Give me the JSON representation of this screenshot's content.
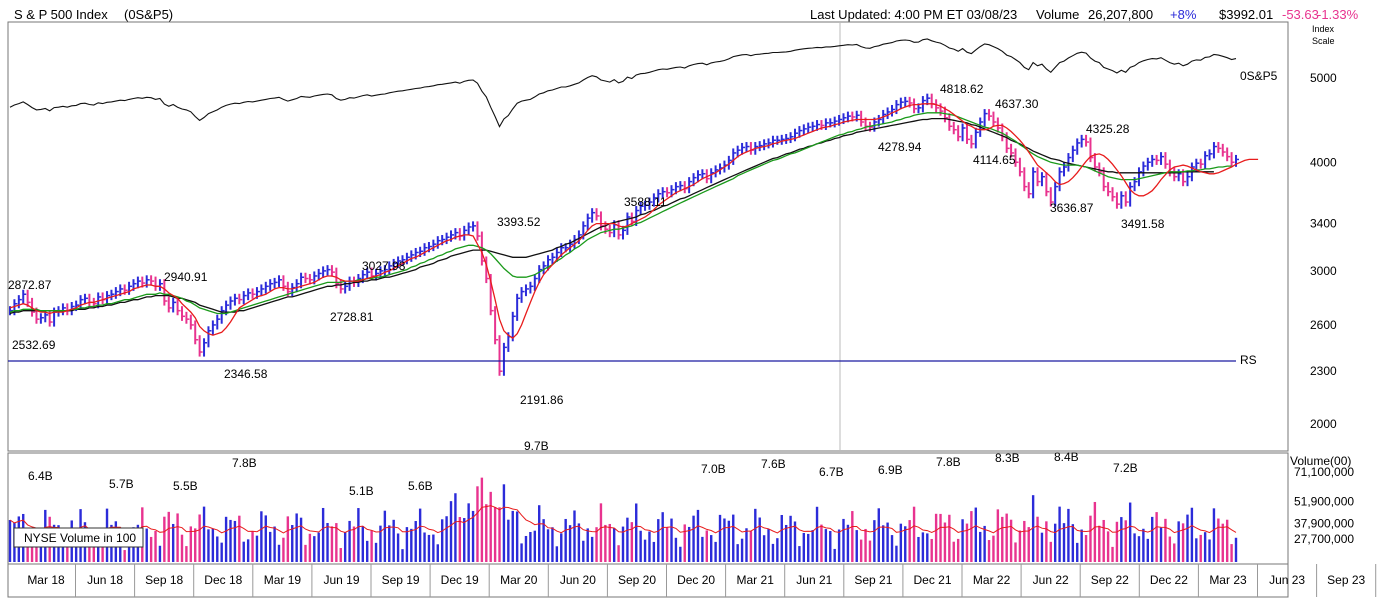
{
  "header": {
    "title": "S & P 500 Index",
    "symbol": "(0S&P5)",
    "last_updated": "Last Updated: 4:00 PM ET 03/08/23",
    "volume_label": "Volume",
    "volume_value": "26,207,800",
    "volume_change": "+8%",
    "price": "$3992.01",
    "change": "-53.63",
    "change_pct": "-1.33%"
  },
  "colors": {
    "up_bar": "#2b2bd9",
    "down_bar": "#e8338f",
    "ma_red": "#e81c1c",
    "ma_green": "#1a9a1a",
    "ma_black": "#111111",
    "rs_line": "#1a1aa0",
    "positive": "#2b2bd9",
    "negative": "#e8338f"
  },
  "chart_data": [
    {
      "type": "line",
      "panel": "price",
      "scale": "log",
      "ylim": [
        1800,
        6000
      ],
      "scale_label": [
        "Index",
        "Scale"
      ],
      "y_ticks": [
        2000,
        2300,
        2600,
        3000,
        3400,
        4000,
        5000
      ],
      "x_ticks": [
        "Mar 18",
        "Jun 18",
        "Sep 18",
        "Dec 18",
        "Mar 19",
        "Jun 19",
        "Sep 19",
        "Dec 19",
        "Mar 20",
        "Jun 20",
        "Sep 20",
        "Dec 20",
        "Mar 21",
        "Jun 21",
        "Sep 21",
        "Dec 21",
        "Mar 22",
        "Jun 22",
        "Sep 22",
        "Dec 22",
        "Mar 23",
        "Jun 23",
        "Sep 23"
      ],
      "price_annotations": [
        "2872.87",
        "2532.69",
        "2940.91",
        "2346.58",
        "2728.81",
        "3027.98",
        "3393.52",
        "2191.86",
        "3588.11",
        "4278.94",
        "4818.62",
        "4637.30",
        "4114.65",
        "4325.28",
        "3636.87",
        "3491.58"
      ],
      "weekly_close": [
        2700,
        2750,
        2780,
        2820,
        2760,
        2690,
        2640,
        2650,
        2670,
        2620,
        2690,
        2700,
        2720,
        2700,
        2730,
        2740,
        2780,
        2790,
        2760,
        2750,
        2800,
        2780,
        2810,
        2820,
        2840,
        2860,
        2850,
        2880,
        2900,
        2920,
        2905,
        2930,
        2920,
        2880,
        2900,
        2770,
        2720,
        2760,
        2700,
        2660,
        2640,
        2600,
        2500,
        2420,
        2480,
        2560,
        2600,
        2640,
        2700,
        2740,
        2770,
        2790,
        2780,
        2810,
        2830,
        2820,
        2840,
        2860,
        2880,
        2900,
        2910,
        2930,
        2880,
        2840,
        2870,
        2900,
        2950,
        2940,
        2930,
        2960,
        2980,
        3000,
        3010,
        2990,
        2900,
        2860,
        2880,
        2920,
        2910,
        2940,
        2970,
        2990,
        2960,
        2980,
        3000,
        3010,
        3040,
        3060,
        3080,
        3090,
        3110,
        3130,
        3150,
        3160,
        3190,
        3200,
        3220,
        3250,
        3260,
        3280,
        3300,
        3320,
        3290,
        3340,
        3370,
        3380,
        3290,
        3080,
        2940,
        2700,
        2500,
        2300,
        2450,
        2520,
        2660,
        2790,
        2840,
        2860,
        2880,
        2940,
        3010,
        3040,
        3090,
        3110,
        3150,
        3190,
        3190,
        3220,
        3260,
        3300,
        3380,
        3450,
        3500,
        3470,
        3380,
        3350,
        3320,
        3390,
        3300,
        3340,
        3460,
        3420,
        3520,
        3560,
        3570,
        3600,
        3640,
        3680,
        3700,
        3690,
        3720,
        3750,
        3760,
        3730,
        3800,
        3840,
        3870,
        3880,
        3830,
        3890,
        3920,
        3940,
        3970,
        4020,
        4100,
        4130,
        4160,
        4170,
        4130,
        4170,
        4180,
        4200,
        4210,
        4240,
        4240,
        4250,
        4260,
        4280,
        4320,
        4350,
        4370,
        4390,
        4400,
        4420,
        4410,
        4440,
        4440,
        4460,
        4480,
        4500,
        4520,
        4510,
        4530,
        4450,
        4400,
        4390,
        4450,
        4480,
        4540,
        4570,
        4600,
        4660,
        4690,
        4700,
        4680,
        4610,
        4620,
        4710,
        4740,
        4670,
        4620,
        4580,
        4500,
        4400,
        4360,
        4280,
        4380,
        4250,
        4200,
        4330,
        4450,
        4550,
        4520,
        4450,
        4380,
        4280,
        4150,
        4100,
        4000,
        3900,
        3750,
        3680,
        3900,
        3800,
        3850,
        3700,
        3600,
        3750,
        3900,
        3950,
        4050,
        4130,
        4210,
        4250,
        4220,
        4050,
        3950,
        3900,
        3750,
        3700,
        3650,
        3580,
        3660,
        3600,
        3750,
        3800,
        3900,
        3960,
        4000,
        4030,
        4020,
        4060,
        3980,
        3900,
        3850,
        3880,
        3800,
        3850,
        3950,
        3990,
        3980,
        4070,
        4090,
        4170,
        4150,
        4110,
        4060,
        4000,
        4030
      ],
      "sma10": [
        2720,
        2730,
        2740,
        2750,
        2740,
        2720,
        2700,
        2690,
        2690,
        2680,
        2690,
        2690,
        2690,
        2700,
        2710,
        2720,
        2740,
        2750,
        2760,
        2760,
        2770,
        2780,
        2790,
        2800,
        2810,
        2820,
        2830,
        2840,
        2860,
        2870,
        2880,
        2890,
        2890,
        2880,
        2880,
        2860,
        2830,
        2810,
        2790,
        2750,
        2720,
        2690,
        2650,
        2590,
        2560,
        2540,
        2530,
        2540,
        2550,
        2580,
        2620,
        2670,
        2720,
        2740,
        2760,
        2780,
        2800,
        2810,
        2820,
        2840,
        2860,
        2870,
        2870,
        2860,
        2860,
        2870,
        2880,
        2890,
        2900,
        2910,
        2930,
        2950,
        2960,
        2960,
        2950,
        2930,
        2920,
        2920,
        2920,
        2920,
        2930,
        2940,
        2950,
        2960,
        2970,
        2990,
        3000,
        3020,
        3040,
        3060,
        3080,
        3100,
        3110,
        3130,
        3150,
        3170,
        3190,
        3210,
        3230,
        3250,
        3260,
        3280,
        3290,
        3300,
        3300,
        3290,
        3220,
        3150,
        3050,
        2920,
        2780,
        2640,
        2560,
        2530,
        2510,
        2540,
        2600,
        2680,
        2760,
        2840,
        2910,
        2970,
        3010,
        3050,
        3090,
        3130,
        3160,
        3190,
        3220,
        3250,
        3290,
        3340,
        3380,
        3400,
        3400,
        3400,
        3400,
        3400,
        3380,
        3370,
        3380,
        3400,
        3420,
        3440,
        3460,
        3490,
        3530,
        3570,
        3600,
        3630,
        3660,
        3690,
        3710,
        3730,
        3750,
        3770,
        3800,
        3830,
        3850,
        3870,
        3890,
        3920,
        3950,
        3980,
        4020,
        4060,
        4090,
        4110,
        4130,
        4150,
        4160,
        4170,
        4180,
        4200,
        4210,
        4230,
        4240,
        4250,
        4260,
        4280,
        4300,
        4320,
        4340,
        4360,
        4380,
        4390,
        4400,
        4420,
        4430,
        4450,
        4460,
        4470,
        4480,
        4480,
        4480,
        4480,
        4480,
        4490,
        4510,
        4530,
        4560,
        4580,
        4610,
        4630,
        4650,
        4660,
        4660,
        4670,
        4670,
        4670,
        4660,
        4640,
        4610,
        4580,
        4540,
        4500,
        4460,
        4420,
        4400,
        4370,
        4360,
        4360,
        4370,
        4400,
        4410,
        4410,
        4380,
        4340,
        4290,
        4240,
        4180,
        4110,
        4040,
        3970,
        3930,
        3890,
        3850,
        3800,
        3770,
        3780,
        3800,
        3840,
        3890,
        3950,
        4010,
        4060,
        4080,
        4090,
        4070,
        4030,
        3980,
        3920,
        3860,
        3790,
        3720,
        3680,
        3660,
        3660,
        3680,
        3710,
        3760,
        3820,
        3870,
        3920,
        3950,
        3960,
        3970,
        3960,
        3940,
        3920,
        3900,
        3890,
        3880,
        3880,
        3890,
        3910,
        3930,
        3950,
        3980,
        4000,
        4020,
        4030,
        4030,
        4030
      ],
      "sma30": [
        2690,
        2700,
        2700,
        2710,
        2710,
        2710,
        2710,
        2700,
        2700,
        2700,
        2700,
        2700,
        2700,
        2700,
        2710,
        2710,
        2720,
        2720,
        2730,
        2730,
        2740,
        2740,
        2750,
        2750,
        2760,
        2770,
        2780,
        2780,
        2790,
        2800,
        2810,
        2820,
        2820,
        2820,
        2830,
        2820,
        2820,
        2810,
        2800,
        2790,
        2770,
        2760,
        2740,
        2720,
        2710,
        2700,
        2690,
        2680,
        2680,
        2680,
        2690,
        2700,
        2710,
        2720,
        2730,
        2740,
        2750,
        2760,
        2770,
        2780,
        2790,
        2800,
        2810,
        2820,
        2830,
        2840,
        2850,
        2860,
        2870,
        2880,
        2890,
        2900,
        2910,
        2910,
        2910,
        2910,
        2920,
        2920,
        2920,
        2930,
        2930,
        2940,
        2940,
        2950,
        2950,
        2960,
        2970,
        2980,
        2990,
        3000,
        3010,
        3030,
        3040,
        3060,
        3070,
        3090,
        3100,
        3120,
        3130,
        3150,
        3160,
        3180,
        3190,
        3200,
        3210,
        3210,
        3200,
        3190,
        3170,
        3140,
        3100,
        3060,
        3020,
        2990,
        2960,
        2950,
        2950,
        2950,
        2960,
        2970,
        2990,
        3010,
        3030,
        3050,
        3080,
        3100,
        3130,
        3150,
        3180,
        3200,
        3230,
        3260,
        3280,
        3300,
        3320,
        3330,
        3340,
        3350,
        3350,
        3360,
        3370,
        3380,
        3400,
        3410,
        3430,
        3450,
        3470,
        3490,
        3510,
        3530,
        3550,
        3570,
        3590,
        3610,
        3630,
        3650,
        3670,
        3690,
        3710,
        3730,
        3750,
        3770,
        3790,
        3810,
        3830,
        3860,
        3880,
        3900,
        3920,
        3940,
        3960,
        3980,
        4000,
        4020,
        4030,
        4050,
        4070,
        4090,
        4100,
        4120,
        4140,
        4160,
        4180,
        4200,
        4220,
        4240,
        4260,
        4280,
        4300,
        4310,
        4330,
        4340,
        4360,
        4370,
        4390,
        4400,
        4410,
        4420,
        4430,
        4440,
        4450,
        4470,
        4480,
        4500,
        4510,
        4530,
        4540,
        4550,
        4560,
        4560,
        4560,
        4560,
        4550,
        4540,
        4530,
        4510,
        4490,
        4470,
        4450,
        4430,
        4410,
        4390,
        4380,
        4360,
        4340,
        4320,
        4290,
        4260,
        4230,
        4190,
        4160,
        4120,
        4090,
        4060,
        4040,
        4020,
        4000,
        3990,
        3980,
        3970,
        3970,
        3970,
        3970,
        3960,
        3950,
        3930,
        3910,
        3890,
        3870,
        3850,
        3840,
        3830,
        3820,
        3820,
        3820,
        3820,
        3830,
        3840,
        3850,
        3860,
        3870,
        3880,
        3890,
        3900,
        3900,
        3900,
        3900,
        3910,
        3910,
        3920,
        3920,
        3930,
        3930,
        3940,
        3950,
        3950,
        3960,
        3960
      ],
      "sma40": [
        2680,
        2690,
        2690,
        2700,
        2700,
        2700,
        2700,
        2700,
        2700,
        2700,
        2700,
        2700,
        2700,
        2700,
        2700,
        2710,
        2710,
        2710,
        2720,
        2720,
        2730,
        2730,
        2740,
        2740,
        2750,
        2760,
        2760,
        2770,
        2780,
        2780,
        2790,
        2800,
        2800,
        2810,
        2810,
        2810,
        2810,
        2800,
        2790,
        2790,
        2780,
        2770,
        2760,
        2740,
        2730,
        2720,
        2710,
        2700,
        2690,
        2690,
        2690,
        2690,
        2700,
        2700,
        2710,
        2720,
        2730,
        2740,
        2750,
        2760,
        2770,
        2780,
        2790,
        2800,
        2800,
        2810,
        2820,
        2830,
        2840,
        2850,
        2860,
        2870,
        2880,
        2880,
        2890,
        2890,
        2900,
        2900,
        2910,
        2910,
        2920,
        2920,
        2930,
        2930,
        2940,
        2950,
        2950,
        2960,
        2970,
        2980,
        2990,
        3000,
        3010,
        3030,
        3040,
        3050,
        3060,
        3080,
        3090,
        3100,
        3120,
        3130,
        3140,
        3150,
        3160,
        3170,
        3170,
        3170,
        3170,
        3160,
        3150,
        3140,
        3130,
        3120,
        3110,
        3110,
        3110,
        3110,
        3120,
        3130,
        3140,
        3150,
        3160,
        3170,
        3190,
        3200,
        3220,
        3230,
        3250,
        3270,
        3290,
        3310,
        3330,
        3350,
        3370,
        3380,
        3400,
        3410,
        3420,
        3430,
        3440,
        3450,
        3460,
        3480,
        3490,
        3510,
        3520,
        3540,
        3560,
        3570,
        3590,
        3610,
        3630,
        3640,
        3660,
        3680,
        3700,
        3720,
        3740,
        3760,
        3780,
        3800,
        3820,
        3840,
        3860,
        3880,
        3900,
        3920,
        3940,
        3960,
        3980,
        4000,
        4020,
        4040,
        4050,
        4070,
        4090,
        4100,
        4120,
        4140,
        4150,
        4170,
        4180,
        4200,
        4210,
        4230,
        4240,
        4260,
        4270,
        4290,
        4300,
        4310,
        4330,
        4340,
        4350,
        4360,
        4370,
        4380,
        4390,
        4400,
        4410,
        4420,
        4430,
        4440,
        4450,
        4460,
        4470,
        4480,
        4480,
        4490,
        4490,
        4490,
        4490,
        4480,
        4470,
        4460,
        4450,
        4440,
        4420,
        4410,
        4390,
        4370,
        4350,
        4330,
        4310,
        4290,
        4270,
        4240,
        4220,
        4200,
        4170,
        4150,
        4120,
        4100,
        4080,
        4060,
        4040,
        4030,
        4020,
        4000,
        3990,
        3980,
        3970,
        3960,
        3950,
        3940,
        3930,
        3920,
        3910,
        3900,
        3900,
        3890,
        3890,
        3890,
        3890,
        3890,
        3890,
        3890,
        3890,
        3890,
        3890,
        3890,
        3890,
        3890,
        3890,
        3890,
        3900,
        3900,
        3900,
        3900,
        3900,
        3900,
        3900,
        3900
      ],
      "index_overlay_label": "0S&P5",
      "rs_label": "RS"
    },
    {
      "type": "bar",
      "panel": "volume",
      "title": "NYSE Volume in 100",
      "unit_label": "Volume(00)",
      "y_ticks": [
        "71,100,000",
        "51,900,000",
        "37,900,000",
        "27,700,000"
      ],
      "y_tick_values": [
        71100000,
        51900000,
        37900000,
        27700000
      ],
      "volume_annotations": [
        "6.4B",
        "5.7B",
        "5.5B",
        "7.8B",
        "5.1B",
        "5.6B",
        "9.7B",
        "7.0B",
        "7.6B",
        "6.7B",
        "6.9B",
        "7.8B",
        "8.3B",
        "8.4B",
        "7.2B"
      ]
    }
  ]
}
